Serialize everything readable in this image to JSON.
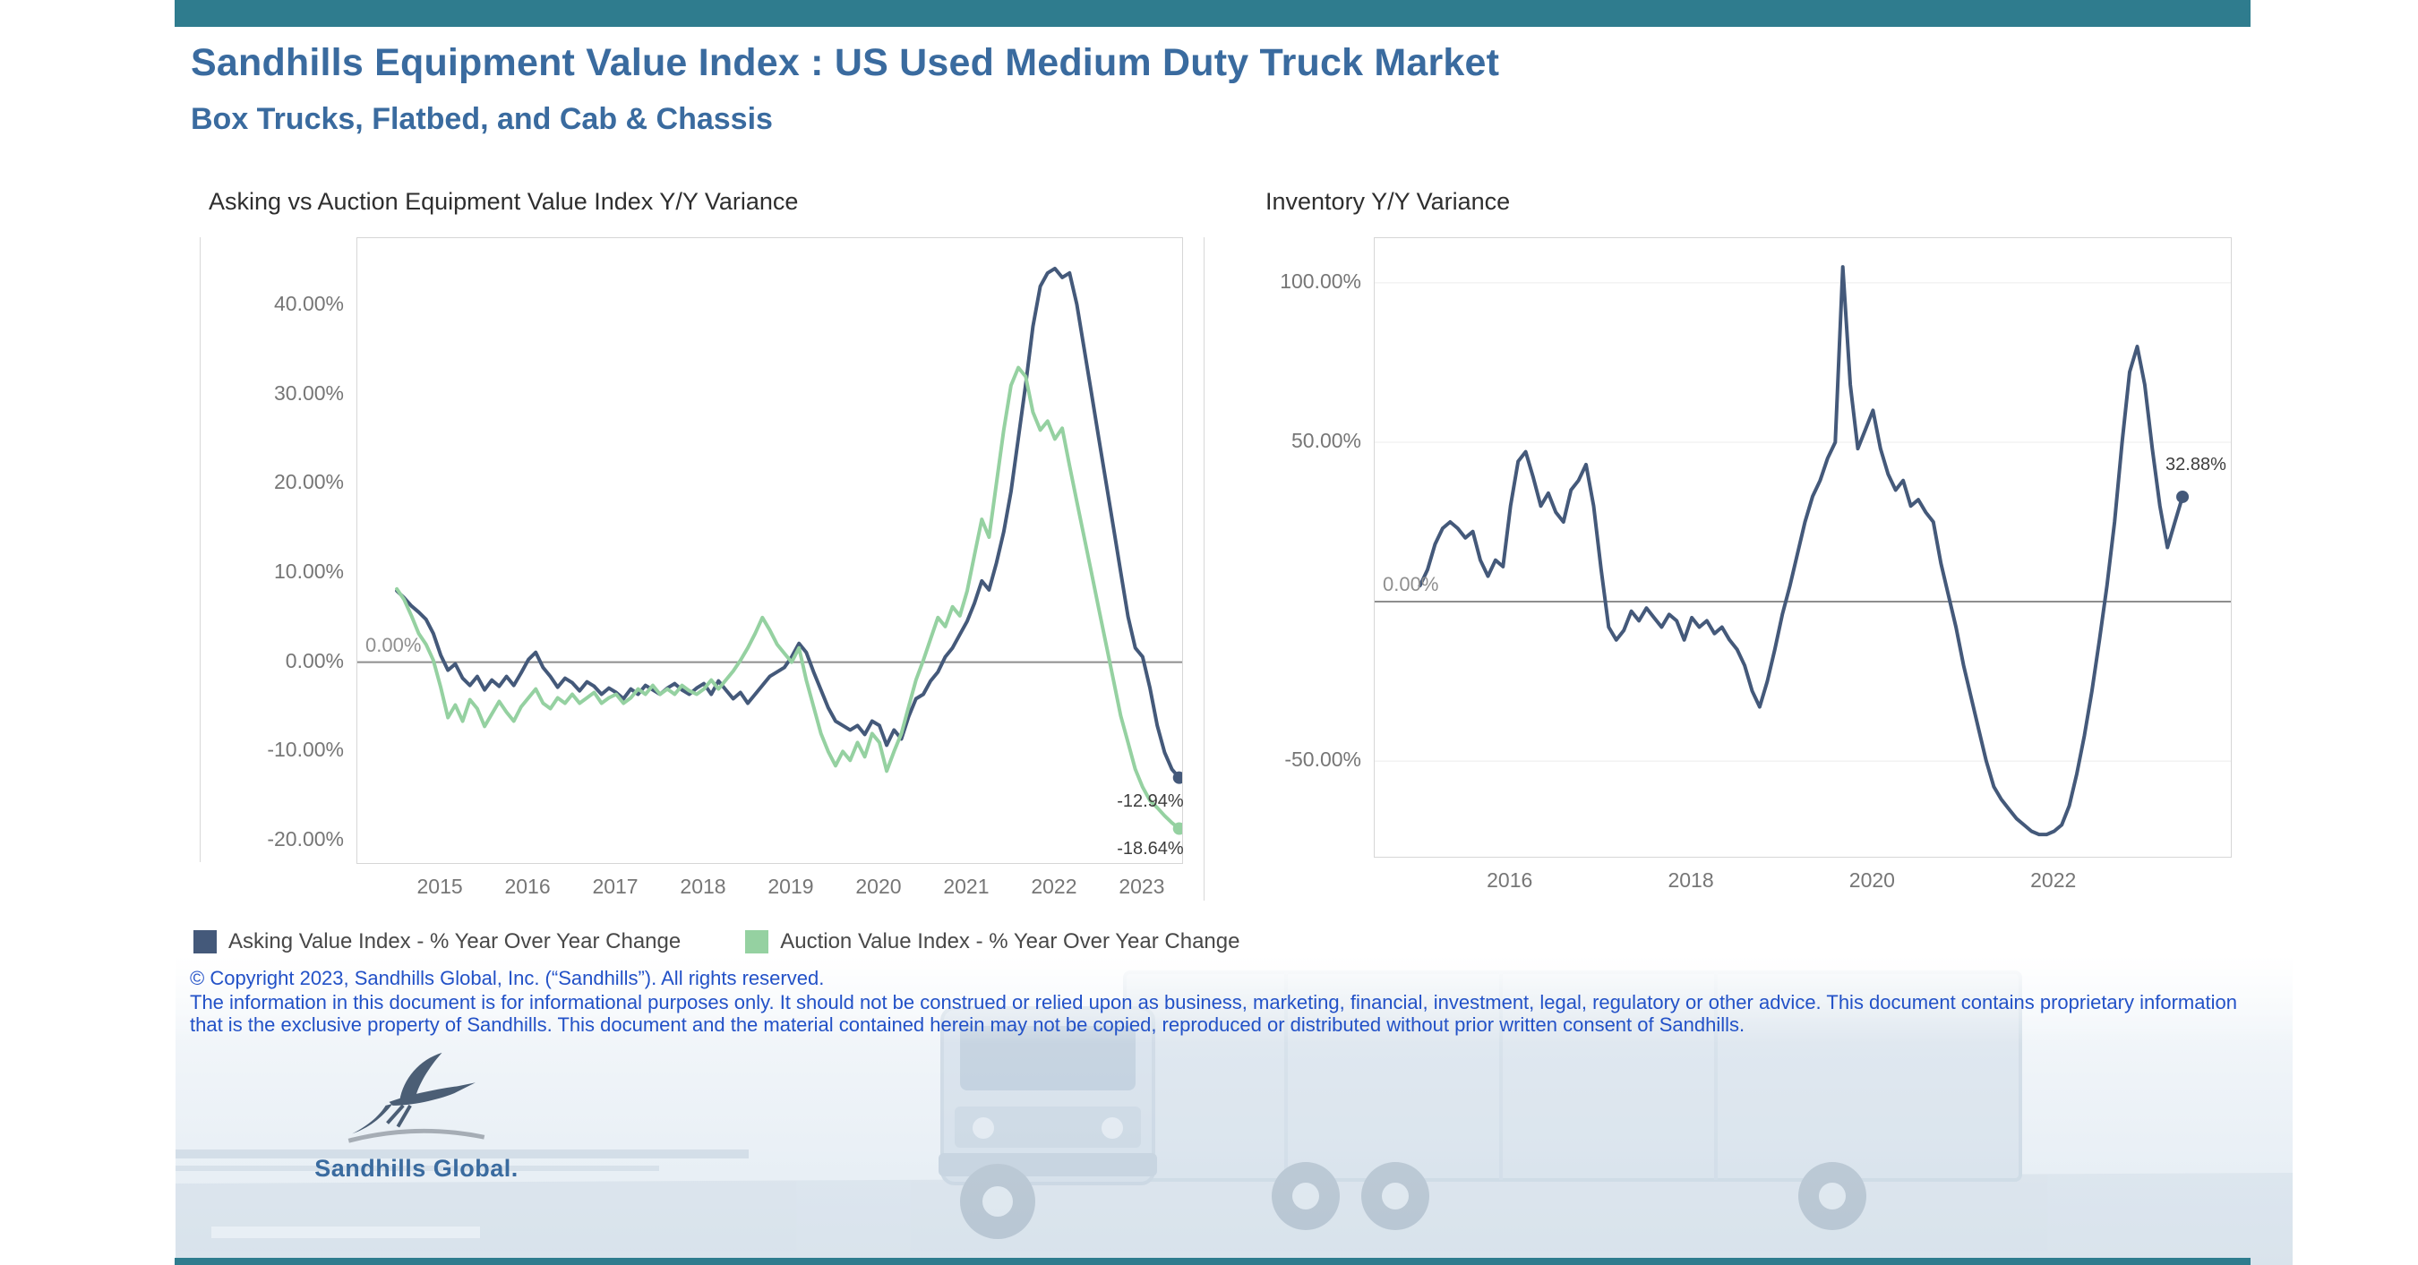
{
  "header": {
    "title": "Sandhills Equipment Value Index : US Used Medium Duty Truck Market",
    "subtitle": "Box Trucks, Flatbed, and Cab & Chassis"
  },
  "colors": {
    "accent_bar": "#2F7C8E",
    "heading": "#3A6B9F",
    "footer_text": "#2251C7",
    "asking_series": "#44597A",
    "auction_series": "#95D1A1",
    "inventory_series": "#44597A"
  },
  "footer": {
    "copyright": "© Copyright 2023, Sandhills Global, Inc. (“Sandhills”). All rights reserved.",
    "disclaimer": "The information in this document is for informational purposes only.  It should not be construed or relied upon as business, marketing, financial, investment, legal, regulatory or other advice. This document contains proprietary information that is the exclusive property of Sandhills. This document and the material contained herein may not be copied, reproduced or distributed without prior written consent of Sandhills.",
    "logo_text": "Sandhills Global."
  },
  "chart_data": [
    {
      "type": "line",
      "title": "Asking vs Auction Equipment Value Index Y/Y Variance",
      "x_unit": "month",
      "start": "2014-07",
      "xlim": [
        2014.05,
        2023.45
      ],
      "ylim": [
        -22.5,
        47.5
      ],
      "grid": false,
      "legend_position": "bottom",
      "zero_label": "0.00%",
      "xticks": [
        2015,
        2016,
        2017,
        2018,
        2019,
        2020,
        2021,
        2022,
        2023
      ],
      "yticks": [
        {
          "value": 40,
          "label": "40.00%"
        },
        {
          "value": 30,
          "label": "30.00%"
        },
        {
          "value": 20,
          "label": "20.00%"
        },
        {
          "value": 10,
          "label": "10.00%"
        },
        {
          "value": 0,
          "label": "0.00%"
        },
        {
          "value": -10,
          "label": "-10.00%"
        },
        {
          "value": -20,
          "label": "-20.00%"
        }
      ],
      "series": [
        {
          "name": "Asking Value Index - % Year Over Year Change",
          "color": "#44597A",
          "end_label": "-12.94%",
          "values": [
            8.0,
            7.2,
            6.3,
            5.6,
            4.8,
            3.2,
            0.8,
            -0.9,
            -0.2,
            -1.8,
            -2.6,
            -1.6,
            -3.1,
            -2.0,
            -2.7,
            -1.6,
            -2.6,
            -1.2,
            0.3,
            1.1,
            -0.6,
            -1.6,
            -2.8,
            -1.8,
            -2.3,
            -3.2,
            -2.2,
            -2.7,
            -3.6,
            -2.9,
            -3.4,
            -4.1,
            -3.0,
            -3.6,
            -2.6,
            -3.1,
            -3.6,
            -2.9,
            -2.4,
            -3.1,
            -3.6,
            -2.9,
            -2.4,
            -3.6,
            -2.1,
            -3.1,
            -4.1,
            -3.4,
            -4.6,
            -3.6,
            -2.6,
            -1.6,
            -1.1,
            -0.6,
            0.6,
            2.1,
            1.1,
            -1.1,
            -3.1,
            -5.1,
            -6.6,
            -7.1,
            -7.6,
            -7.1,
            -8.1,
            -6.6,
            -7.1,
            -9.3,
            -7.6,
            -8.6,
            -6.1,
            -4.1,
            -3.6,
            -2.1,
            -1.1,
            0.6,
            1.6,
            3.1,
            4.6,
            6.6,
            9.1,
            8.1,
            11.1,
            14.6,
            19.1,
            25.1,
            31.1,
            37.6,
            42.1,
            43.6,
            44.1,
            43.1,
            43.6,
            40.1,
            35.1,
            30.1,
            25.1,
            20.1,
            15.1,
            10.1,
            5.1,
            1.6,
            0.6,
            -2.9,
            -7.1,
            -10.1,
            -12.0,
            -12.94
          ]
        },
        {
          "name": "Auction Value Index - % Year Over Year Change",
          "color": "#95D1A1",
          "end_label": "-18.64%",
          "values": [
            8.2,
            7.0,
            5.2,
            3.2,
            2.0,
            0.2,
            -2.8,
            -6.2,
            -4.8,
            -6.6,
            -4.2,
            -5.2,
            -7.2,
            -5.8,
            -4.4,
            -5.6,
            -6.6,
            -5.0,
            -4.0,
            -3.0,
            -4.6,
            -5.2,
            -4.0,
            -4.6,
            -3.6,
            -4.6,
            -4.0,
            -3.4,
            -4.6,
            -4.0,
            -3.6,
            -4.6,
            -4.0,
            -3.0,
            -3.6,
            -2.6,
            -3.6,
            -3.0,
            -3.6,
            -2.6,
            -3.2,
            -3.6,
            -3.0,
            -2.0,
            -3.0,
            -2.0,
            -1.0,
            0.2,
            1.6,
            3.2,
            5.0,
            3.6,
            2.0,
            1.0,
            0.0,
            1.6,
            -2.0,
            -5.0,
            -8.0,
            -10.0,
            -11.6,
            -10.0,
            -11.0,
            -9.0,
            -10.6,
            -8.0,
            -9.0,
            -12.2,
            -10.0,
            -8.0,
            -5.0,
            -2.0,
            0.2,
            2.6,
            5.0,
            4.0,
            6.2,
            5.2,
            8.0,
            12.0,
            16.0,
            14.0,
            20.0,
            26.0,
            31.0,
            33.0,
            32.0,
            28.0,
            26.0,
            27.0,
            25.0,
            26.2,
            22.0,
            18.0,
            14.0,
            10.0,
            6.0,
            2.0,
            -2.0,
            -6.0,
            -9.0,
            -12.0,
            -14.0,
            -15.5,
            -16.3,
            -17.2,
            -18.0,
            -18.64
          ]
        }
      ]
    },
    {
      "type": "line",
      "title": "Inventory Y/Y Variance",
      "x_unit": "month",
      "start": "2015-01",
      "xlim": [
        2014.5,
        2023.95
      ],
      "ylim": [
        -80,
        114
      ],
      "grid": true,
      "zero_label": "0.00%",
      "xticks": [
        2016,
        2018,
        2020,
        2022
      ],
      "yticks": [
        {
          "value": 100,
          "label": "100.00%"
        },
        {
          "value": 50,
          "label": "50.00%"
        },
        {
          "value": -50,
          "label": "-50.00%"
        }
      ],
      "series": [
        {
          "name": "Inventory Y/Y Variance",
          "color": "#44597A",
          "end_label": "32.88%",
          "values": [
            5,
            10,
            18,
            23,
            25,
            23,
            20,
            22,
            13,
            8,
            13,
            11,
            30,
            44,
            47,
            39,
            30,
            34,
            28,
            25,
            35,
            38,
            43,
            30,
            10,
            -8,
            -12,
            -9,
            -3,
            -6,
            -2,
            -5,
            -8,
            -4,
            -6,
            -12,
            -5,
            -8,
            -6,
            -10,
            -8,
            -12,
            -15,
            -20,
            -28,
            -33,
            -25,
            -15,
            -4,
            5,
            15,
            25,
            33,
            38,
            45,
            50,
            105,
            68,
            48,
            54,
            60,
            48,
            40,
            35,
            38,
            30,
            32,
            28,
            25,
            12,
            2,
            -8,
            -20,
            -30,
            -40,
            -50,
            -58,
            -62,
            -65,
            -68,
            -70,
            -72,
            -73,
            -73,
            -72,
            -70,
            -64,
            -54,
            -42,
            -28,
            -12,
            5,
            25,
            50,
            72,
            80,
            68,
            48,
            30,
            17,
            25,
            32.88
          ]
        }
      ]
    }
  ]
}
